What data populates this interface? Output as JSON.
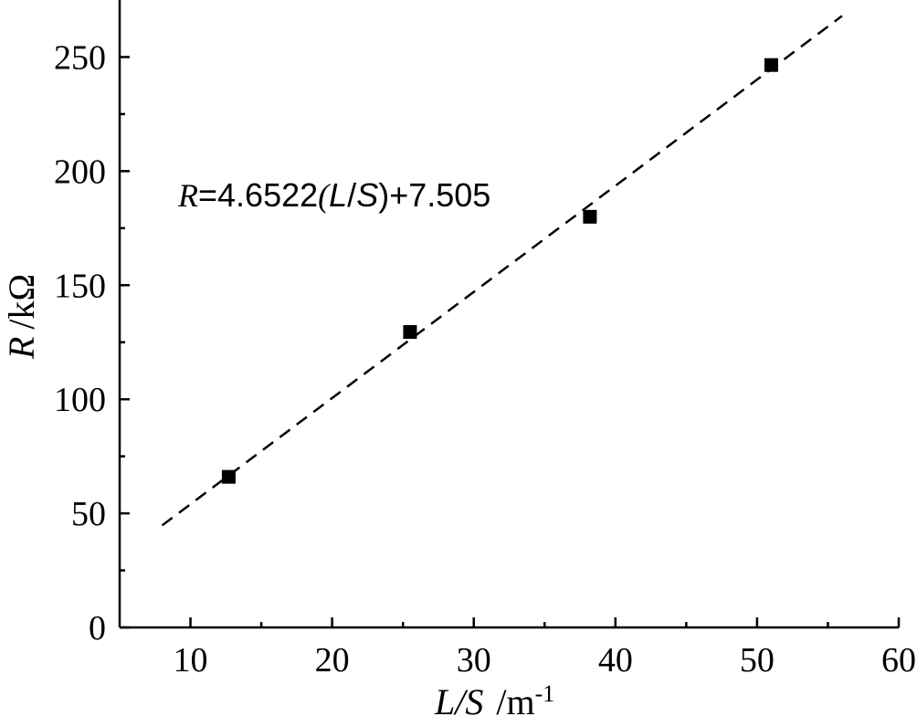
{
  "chart_data": {
    "type": "scatter",
    "title": "",
    "xlabel": {
      "var": "L/S",
      "unit": "/m",
      "exp": "-1"
    },
    "ylabel": {
      "var": "R",
      "unit": "/kΩ"
    },
    "xlim": [
      5,
      60
    ],
    "ylim": [
      0,
      275
    ],
    "x_ticks": [
      10,
      20,
      30,
      40,
      50,
      60
    ],
    "y_ticks": [
      0,
      50,
      100,
      150,
      200,
      250
    ],
    "grid": false,
    "series": [
      {
        "points": [
          {
            "x": 12.7,
            "y": 66
          },
          {
            "x": 25.5,
            "y": 129.5
          },
          {
            "x": 38.2,
            "y": 180
          },
          {
            "x": 51.0,
            "y": 246.5
          }
        ]
      }
    ],
    "fit": {
      "slope": 4.6522,
      "intercept": 7.505,
      "x_range": [
        8,
        56
      ],
      "style": "dashed"
    },
    "annotation": {
      "R": "R",
      "eq_a": "=4.6522",
      "open": "(",
      "L": "L",
      "slash": "/",
      "S": "S",
      "close": ")",
      "eq_b": "+7.505"
    }
  }
}
